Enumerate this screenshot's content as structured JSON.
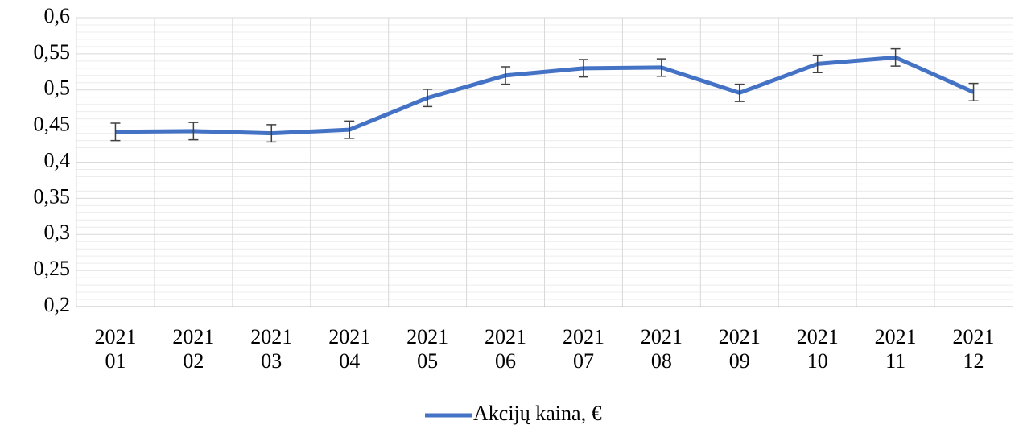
{
  "chart_data": {
    "type": "line",
    "categories": [
      "2021 01",
      "2021 02",
      "2021 03",
      "2021 04",
      "2021 05",
      "2021 06",
      "2021 07",
      "2021 08",
      "2021 09",
      "2021 10",
      "2021 11",
      "2021 12"
    ],
    "series": [
      {
        "name": "Akcijų kaina, €",
        "color": "#4472c4",
        "values": [
          0.442,
          0.443,
          0.44,
          0.445,
          0.489,
          0.52,
          0.53,
          0.531,
          0.496,
          0.536,
          0.545,
          0.497
        ],
        "errors": [
          0.012,
          0.012,
          0.012,
          0.012,
          0.012,
          0.012,
          0.012,
          0.012,
          0.012,
          0.012,
          0.012,
          0.012
        ]
      }
    ],
    "ylim": [
      0.2,
      0.6
    ],
    "yticks": [
      {
        "value": 0.2,
        "label": "0,2"
      },
      {
        "value": 0.25,
        "label": "0,25"
      },
      {
        "value": 0.3,
        "label": "0,3"
      },
      {
        "value": 0.35,
        "label": "0,35"
      },
      {
        "value": 0.4,
        "label": "0,4"
      },
      {
        "value": 0.45,
        "label": "0,45"
      },
      {
        "value": 0.5,
        "label": "0,5"
      },
      {
        "value": 0.55,
        "label": "0,55"
      },
      {
        "value": 0.6,
        "label": "0,6"
      }
    ],
    "grid": true,
    "legend": "bottom"
  }
}
